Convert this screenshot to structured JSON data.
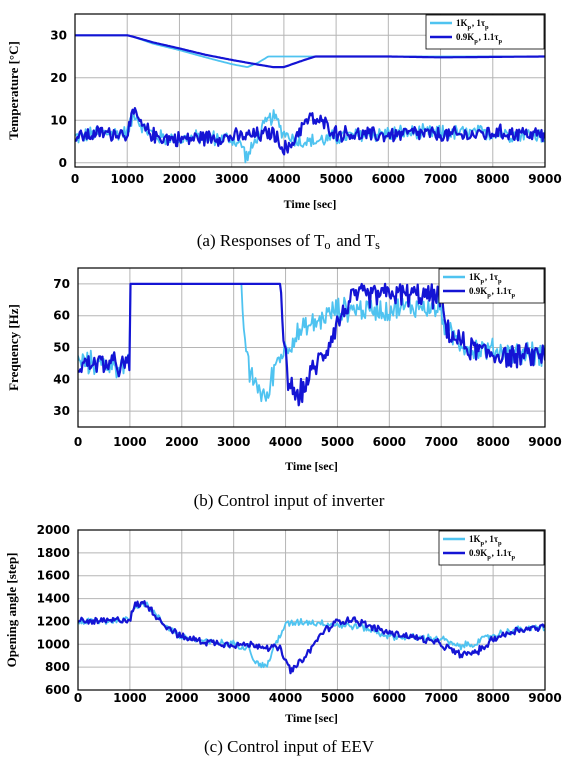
{
  "colors": {
    "series_a": "#4fc3f0",
    "series_b": "#1414d4"
  },
  "legend_labels": [
    "1K_p, 1τ_p",
    "0.9K_p, 1.1τ_p"
  ],
  "chart_data": [
    {
      "type": "line",
      "caption": "(a) Responses of T_o and T_s",
      "xlabel": "Time [sec]",
      "ylabel": "Temperature [°C]",
      "xlim": [
        0,
        9000
      ],
      "ylim": [
        -1,
        35
      ],
      "x_ticks": [
        "0",
        "1000",
        "2000",
        "3000",
        "4000",
        "5000",
        "6000",
        "7000",
        "8000",
        "9000"
      ],
      "y_ticks": [
        "0",
        "10",
        "20",
        "30"
      ],
      "grid": true,
      "legend": "top-right",
      "series": [
        {
          "name": "1K_p, 1τ_p",
          "x": [
            0,
            1000,
            1100,
            1500,
            2000,
            2500,
            3000,
            3300,
            3500,
            3700,
            4000,
            4500,
            5000,
            6000,
            7000,
            8000,
            9000
          ],
          "y": [
            30,
            30,
            29.7,
            28,
            26.5,
            24.8,
            23.2,
            22.5,
            23.5,
            25,
            25,
            25,
            25,
            25,
            25,
            25,
            25
          ]
        },
        {
          "name": "0.9K_p, 1.1τ_p",
          "x": [
            0,
            1000,
            1100,
            1500,
            2000,
            2500,
            3000,
            3500,
            3800,
            4000,
            4300,
            4600,
            5000,
            6000,
            7000,
            8000,
            9000
          ],
          "y": [
            30,
            30,
            29.7,
            28.3,
            26.9,
            25.4,
            24.2,
            23.1,
            22.5,
            22.5,
            23.8,
            25,
            25,
            25,
            24.8,
            24.9,
            25
          ]
        },
        {
          "name": "1K_p, 1τ_p",
          "x": [
            0,
            500,
            1000,
            1150,
            1300,
            1600,
            2000,
            2500,
            3000,
            3200,
            3300,
            3450,
            3700,
            3800,
            4000,
            4300,
            4600,
            5000,
            6000,
            7000,
            7500,
            8000,
            9000
          ],
          "y": [
            6,
            7,
            7,
            12,
            8,
            6,
            5.5,
            6,
            5.5,
            4,
            1,
            5,
            10,
            11,
            7,
            5,
            5,
            6,
            7,
            7,
            7,
            7,
            6.5
          ]
        },
        {
          "name": "0.9K_p, 1.1τ_p",
          "x": [
            0,
            500,
            1000,
            1150,
            1300,
            1600,
            2000,
            2500,
            3000,
            3500,
            3800,
            3950,
            4100,
            4300,
            4500,
            4800,
            5000,
            5500,
            6000,
            6500,
            7000,
            7500,
            8000,
            8500,
            9000
          ],
          "y": [
            6,
            7,
            7,
            12,
            8,
            6,
            5.5,
            6,
            6,
            6.5,
            7,
            4,
            3,
            8,
            10.5,
            9,
            7,
            6.5,
            6.5,
            7,
            6.5,
            6.5,
            7,
            7,
            6.5
          ]
        }
      ]
    },
    {
      "type": "line",
      "caption": "(b) Control input of inverter",
      "xlabel": "Time [sec]",
      "ylabel": "Frequency [Hz]",
      "xlim": [
        0,
        9000
      ],
      "ylim": [
        25,
        75
      ],
      "x_ticks": [
        "0",
        "1000",
        "2000",
        "3000",
        "4000",
        "5000",
        "6000",
        "7000",
        "8000",
        "9000"
      ],
      "y_ticks": [
        "30",
        "40",
        "50",
        "60",
        "70"
      ],
      "grid": true,
      "legend": "top-right",
      "series": [
        {
          "name": "1K_p, 1τ_p",
          "x": [
            0,
            500,
            900,
            1000,
            1010,
            3150,
            3200,
            3300,
            3500,
            3650,
            3700,
            3800,
            4000,
            4300,
            4600,
            5000,
            5500,
            6000,
            6500,
            7000,
            7100,
            7500,
            8000,
            8500,
            9000
          ],
          "y": [
            45,
            45,
            44,
            44,
            70,
            70,
            55,
            42,
            37,
            33,
            38,
            45,
            50,
            55,
            58,
            62,
            62,
            62,
            63,
            62,
            55,
            50,
            49,
            48,
            48
          ]
        },
        {
          "name": "0.9K_p, 1.1τ_p",
          "x": [
            0,
            500,
            900,
            1000,
            1010,
            3900,
            3950,
            4050,
            4200,
            4300,
            4500,
            4800,
            5000,
            5300,
            6000,
            7000,
            7100,
            7500,
            8000,
            8500,
            9000
          ],
          "y": [
            45,
            45,
            44,
            44,
            70,
            70,
            55,
            40,
            34,
            36,
            42,
            50,
            58,
            66,
            67,
            66,
            55,
            50,
            48,
            47,
            48
          ]
        }
      ]
    },
    {
      "type": "line",
      "caption": "(c) Control input of EEV",
      "xlabel": "Time [sec]",
      "ylabel": "Opening angle [step]",
      "xlim": [
        0,
        9000
      ],
      "ylim": [
        600,
        2000
      ],
      "x_ticks": [
        "0",
        "1000",
        "2000",
        "3000",
        "4000",
        "5000",
        "6000",
        "7000",
        "8000",
        "9000"
      ],
      "y_ticks": [
        "600",
        "800",
        "1000",
        "1200",
        "1400",
        "1600",
        "1800",
        "2000"
      ],
      "grid": true,
      "legend": "top-right",
      "series": [
        {
          "name": "1K_p, 1τ_p",
          "x": [
            0,
            500,
            1000,
            1100,
            1300,
            1600,
            2000,
            2500,
            3000,
            3300,
            3400,
            3550,
            3650,
            3800,
            4000,
            4300,
            4600,
            5000,
            5500,
            6000,
            6500,
            7000,
            7300,
            7600,
            8000,
            8500,
            9000
          ],
          "y": [
            1200,
            1200,
            1220,
            1340,
            1360,
            1200,
            1060,
            1020,
            1000,
            980,
            850,
            810,
            820,
            1000,
            1170,
            1200,
            1190,
            1170,
            1150,
            1070,
            1060,
            1050,
            980,
            1000,
            1080,
            1130,
            1150
          ]
        },
        {
          "name": "0.9K_p, 1.1τ_p",
          "x": [
            0,
            500,
            1000,
            1100,
            1300,
            1600,
            2000,
            2500,
            3000,
            3500,
            3900,
            4000,
            4100,
            4200,
            4400,
            4700,
            5000,
            5300,
            5600,
            6000,
            6500,
            7000,
            7300,
            7500,
            7800,
            8000,
            8500,
            9000
          ],
          "y": [
            1200,
            1200,
            1220,
            1340,
            1360,
            1200,
            1060,
            1020,
            1000,
            990,
            960,
            850,
            770,
            800,
            900,
            1100,
            1200,
            1220,
            1160,
            1100,
            1060,
            1000,
            920,
            910,
            960,
            1050,
            1130,
            1150
          ]
        }
      ]
    }
  ]
}
